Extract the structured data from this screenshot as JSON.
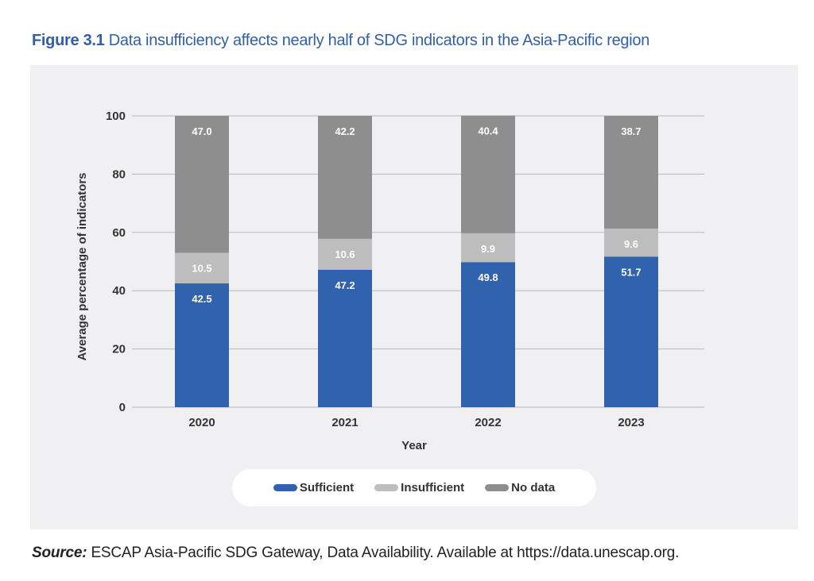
{
  "figure": {
    "number_label": "Figure 3.1",
    "title_text": "Data insufficiency affects nearly half of SDG indicators in the Asia-Pacific region",
    "source_label": "Source:",
    "source_text": "ESCAP Asia-Pacific SDG Gateway, Data Availability. Available at https://data.unescap.org."
  },
  "chart_data": {
    "type": "bar",
    "stacked": true,
    "title": "Data insufficiency affects nearly half of SDG indicators in the Asia-Pacific region",
    "xlabel": "Year",
    "ylabel": "Average percentage of indicators",
    "categories": [
      "2020",
      "2021",
      "2022",
      "2023"
    ],
    "ylim": [
      0,
      100
    ],
    "yticks": [
      0,
      20,
      40,
      60,
      80,
      100
    ],
    "grid": true,
    "legend_position": "bottom",
    "series": [
      {
        "name": "Sufficient",
        "color": "#3062ad",
        "values": [
          42.5,
          47.2,
          49.8,
          51.7
        ]
      },
      {
        "name": "Insufficient",
        "color": "#bdbdbd",
        "values": [
          10.5,
          10.6,
          9.9,
          9.6
        ]
      },
      {
        "name": "No data",
        "color": "#8e8e8e",
        "values": [
          47.0,
          42.2,
          40.4,
          38.7
        ]
      }
    ]
  }
}
